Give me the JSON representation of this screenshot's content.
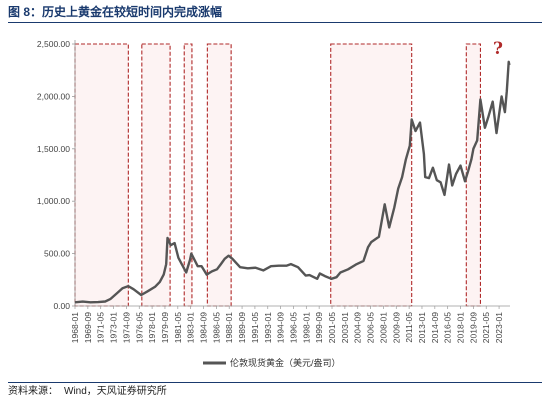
{
  "figure": {
    "title": "图 8：历史上黄金在较短时间内完成涨幅",
    "source_label": "资料来源：",
    "source_text": "Wind，天风证券研究所"
  },
  "chart_data": {
    "type": "line",
    "title": "",
    "xlabel": "",
    "ylabel": "",
    "ylim": [
      0,
      2500
    ],
    "yticks": [
      "0.00",
      "500.00",
      "1,000.00",
      "1,500.00",
      "2,000.00",
      "2,500.00"
    ],
    "xticks": [
      "1968-01",
      "1969-09",
      "1971-05",
      "1973-01",
      "1974-09",
      "1976-05",
      "1978-01",
      "1979-09",
      "1981-05",
      "1983-01",
      "1984-09",
      "1986-05",
      "1988-01",
      "1989-09",
      "1991-05",
      "1993-01",
      "1994-09",
      "1996-05",
      "1998-01",
      "1999-09",
      "2001-05",
      "2003-01",
      "2004-09",
      "2006-05",
      "2008-01",
      "2009-09",
      "2011-05",
      "2013-01",
      "2014-09",
      "2016-05",
      "2018-01",
      "2019-09",
      "2021-05",
      "2023-01"
    ],
    "xrange": [
      "1968-01",
      "2024-06"
    ],
    "grid": false,
    "legend_position": "bottom-center",
    "series": [
      {
        "name": "伦敦现货黄金（美元/盎司）",
        "color": "#555555",
        "points": [
          [
            "1968-01",
            35
          ],
          [
            "1969-01",
            42
          ],
          [
            "1970-01",
            35
          ],
          [
            "1971-01",
            37
          ],
          [
            "1971-12",
            43
          ],
          [
            "1972-08",
            66
          ],
          [
            "1973-06",
            120
          ],
          [
            "1974-03",
            170
          ],
          [
            "1974-12",
            190
          ],
          [
            "1975-08",
            160
          ],
          [
            "1976-08",
            105
          ],
          [
            "1977-06",
            140
          ],
          [
            "1978-06",
            185
          ],
          [
            "1979-01",
            230
          ],
          [
            "1979-07",
            300
          ],
          [
            "1979-11",
            400
          ],
          [
            "1980-01",
            650
          ],
          [
            "1980-06",
            580
          ],
          [
            "1980-12",
            600
          ],
          [
            "1981-06",
            460
          ],
          [
            "1982-06",
            320
          ],
          [
            "1982-12",
            440
          ],
          [
            "1983-02",
            500
          ],
          [
            "1983-12",
            380
          ],
          [
            "1984-06",
            380
          ],
          [
            "1985-02",
            300
          ],
          [
            "1985-10",
            330
          ],
          [
            "1986-06",
            350
          ],
          [
            "1986-12",
            400
          ],
          [
            "1987-06",
            450
          ],
          [
            "1987-12",
            480
          ],
          [
            "1988-06",
            450
          ],
          [
            "1989-06",
            370
          ],
          [
            "1990-06",
            360
          ],
          [
            "1991-06",
            365
          ],
          [
            "1992-06",
            340
          ],
          [
            "1993-06",
            380
          ],
          [
            "1994-06",
            385
          ],
          [
            "1995-06",
            385
          ],
          [
            "1996-01",
            400
          ],
          [
            "1996-12",
            370
          ],
          [
            "1997-12",
            290
          ],
          [
            "1998-06",
            295
          ],
          [
            "1999-06",
            260
          ],
          [
            "1999-10",
            310
          ],
          [
            "2000-06",
            285
          ],
          [
            "2001-04",
            260
          ],
          [
            "2001-12",
            275
          ],
          [
            "2002-06",
            320
          ],
          [
            "2003-06",
            350
          ],
          [
            "2004-06",
            395
          ],
          [
            "2005-06",
            430
          ],
          [
            "2006-01",
            560
          ],
          [
            "2006-06",
            610
          ],
          [
            "2007-06",
            660
          ],
          [
            "2008-03",
            970
          ],
          [
            "2008-10",
            750
          ],
          [
            "2009-06",
            940
          ],
          [
            "2009-12",
            1120
          ],
          [
            "2010-06",
            1230
          ],
          [
            "2010-12",
            1400
          ],
          [
            "2011-06",
            1530
          ],
          [
            "2011-09",
            1780
          ],
          [
            "2012-03",
            1670
          ],
          [
            "2012-10",
            1750
          ],
          [
            "2013-04",
            1450
          ],
          [
            "2013-06",
            1230
          ],
          [
            "2013-12",
            1220
          ],
          [
            "2014-06",
            1320
          ],
          [
            "2014-12",
            1200
          ],
          [
            "2015-06",
            1180
          ],
          [
            "2015-12",
            1060
          ],
          [
            "2016-07",
            1350
          ],
          [
            "2016-12",
            1150
          ],
          [
            "2017-06",
            1260
          ],
          [
            "2018-01",
            1340
          ],
          [
            "2018-08",
            1190
          ],
          [
            "2019-01",
            1290
          ],
          [
            "2019-06",
            1400
          ],
          [
            "2019-09",
            1500
          ],
          [
            "2020-03",
            1580
          ],
          [
            "2020-08",
            1970
          ],
          [
            "2021-03",
            1700
          ],
          [
            "2021-08",
            1800
          ],
          [
            "2022-03",
            1950
          ],
          [
            "2022-09",
            1650
          ],
          [
            "2023-05",
            2000
          ],
          [
            "2023-10",
            1850
          ],
          [
            "2024-01",
            2050
          ],
          [
            "2024-04",
            2330
          ],
          [
            "2024-05",
            2300
          ]
        ]
      }
    ],
    "highlight_periods": [
      {
        "start": "1968-01",
        "end": "1974-12",
        "ymax": 2500
      },
      {
        "start": "1976-09",
        "end": "1980-05",
        "ymax": 2500
      },
      {
        "start": "1982-03",
        "end": "1983-03",
        "ymax": 2500
      },
      {
        "start": "1985-03",
        "end": "1988-04",
        "ymax": 2500
      },
      {
        "start": "2001-03",
        "end": "2011-09",
        "ymax": 2500
      },
      {
        "start": "2018-10",
        "end": "2020-08",
        "ymax": 2500
      }
    ],
    "highlight_color": "#b02a2a",
    "annotation": {
      "text": "?",
      "color": "#b02a2a"
    }
  }
}
